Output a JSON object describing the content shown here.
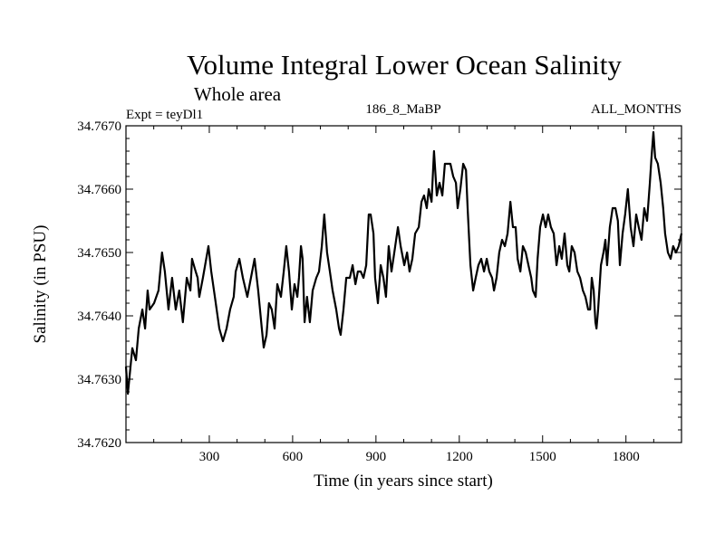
{
  "chart_data": {
    "type": "line",
    "title": "Volume Integral Lower Ocean Salinity",
    "subtitle": "Whole area",
    "annotations": {
      "left": "Expt = teyDl1",
      "center": "186_8_MaBP",
      "right": "ALL_MONTHS"
    },
    "xlabel": "Time (in years since start)",
    "ylabel": "Salinity (in PSU)",
    "xlim": [
      0,
      2000
    ],
    "ylim": [
      34.762,
      34.767
    ],
    "x_ticks": [
      300,
      600,
      900,
      1200,
      1500,
      1800
    ],
    "x_tick_labels": [
      "300",
      "600",
      "900",
      "1200",
      "1500",
      "1800"
    ],
    "x_minor_step": 100,
    "y_ticks": [
      34.762,
      34.763,
      34.764,
      34.765,
      34.766,
      34.767
    ],
    "y_tick_labels": [
      "34.7620",
      "34.7630",
      "34.7640",
      "34.7650",
      "34.7660",
      "34.7670"
    ],
    "y_minor_step": 0.0002,
    "grid": false,
    "legend": "none",
    "series": [
      {
        "name": "Lower ocean salinity",
        "color": "#000000",
        "x": [
          0,
          7,
          23,
          36,
          46,
          59,
          69,
          78,
          85,
          101,
          117,
          130,
          140,
          153,
          166,
          179,
          192,
          205,
          219,
          232,
          238,
          251,
          258,
          264,
          277,
          297,
          307,
          320,
          336,
          349,
          362,
          375,
          388,
          395,
          408,
          421,
          437,
          450,
          463,
          476,
          489,
          496,
          506,
          515,
          525,
          535,
          545,
          558,
          568,
          577,
          587,
          597,
          607,
          617,
          623,
          630,
          636,
          643,
          652,
          662,
          672,
          685,
          695,
          705,
          714,
          724,
          734,
          744,
          757,
          767,
          773,
          783,
          793,
          806,
          816,
          826,
          835,
          845,
          855,
          865,
          874,
          881,
          891,
          897,
          907,
          917,
          927,
          936,
          946,
          956,
          966,
          979,
          989,
          1002,
          1012,
          1021,
          1031,
          1041,
          1054,
          1064,
          1073,
          1083,
          1090,
          1100,
          1109,
          1119,
          1129,
          1139,
          1148,
          1158,
          1168,
          1178,
          1188,
          1194,
          1204,
          1214,
          1224,
          1230,
          1240,
          1250,
          1259,
          1269,
          1279,
          1289,
          1299,
          1308,
          1318,
          1325,
          1334,
          1344,
          1354,
          1364,
          1374,
          1384,
          1393,
          1403,
          1410,
          1420,
          1429,
          1439,
          1449,
          1459,
          1465,
          1475,
          1482,
          1491,
          1501,
          1511,
          1520,
          1530,
          1540,
          1550,
          1560,
          1569,
          1579,
          1589,
          1596,
          1605,
          1615,
          1625,
          1635,
          1645,
          1654,
          1664,
          1671,
          1677,
          1684,
          1690,
          1694,
          1700,
          1710,
          1719,
          1726,
          1732,
          1742,
          1752,
          1762,
          1771,
          1778,
          1788,
          1797,
          1807,
          1817,
          1827,
          1837,
          1846,
          1856,
          1866,
          1876,
          1886,
          1892,
          1899,
          1905,
          1915,
          1925,
          1934,
          1941,
          1951,
          1961,
          1970,
          1980,
          1990,
          2000
        ],
        "y": [
          34.7632,
          34.76277,
          34.76349,
          34.7633,
          34.7638,
          34.7641,
          34.7638,
          34.7644,
          34.7641,
          34.7642,
          34.7644,
          34.765,
          34.7647,
          34.7641,
          34.7646,
          34.7641,
          34.7644,
          34.7639,
          34.7646,
          34.7644,
          34.7649,
          34.7647,
          34.7646,
          34.7643,
          34.7646,
          34.7651,
          34.7647,
          34.7643,
          34.7638,
          34.7636,
          34.7638,
          34.7641,
          34.7643,
          34.7647,
          34.7649,
          34.7646,
          34.7643,
          34.7646,
          34.7649,
          34.7644,
          34.7638,
          34.7635,
          34.7637,
          34.7642,
          34.7641,
          34.7638,
          34.7645,
          34.7643,
          34.7647,
          34.7651,
          34.7647,
          34.7641,
          34.7645,
          34.7643,
          34.7646,
          34.7651,
          34.7649,
          34.7639,
          34.7643,
          34.7639,
          34.7644,
          34.7646,
          34.7647,
          34.7651,
          34.7656,
          34.765,
          34.7647,
          34.7644,
          34.7641,
          34.7638,
          34.7637,
          34.7641,
          34.7646,
          34.7646,
          34.7648,
          34.7645,
          34.7647,
          34.7647,
          34.7646,
          34.7648,
          34.7656,
          34.7656,
          34.7653,
          34.7646,
          34.7642,
          34.7648,
          34.7646,
          34.7643,
          34.7651,
          34.7647,
          34.765,
          34.7654,
          34.7651,
          34.7648,
          34.765,
          34.7647,
          34.7649,
          34.7653,
          34.7654,
          34.7658,
          34.7659,
          34.7657,
          34.766,
          34.7658,
          34.7666,
          34.7659,
          34.7661,
          34.7659,
          34.7664,
          34.7664,
          34.7664,
          34.7662,
          34.7661,
          34.7657,
          34.766,
          34.7664,
          34.7663,
          34.7657,
          34.7648,
          34.7644,
          34.7646,
          34.7648,
          34.7649,
          34.7647,
          34.7649,
          34.7647,
          34.7646,
          34.7644,
          34.7646,
          34.765,
          34.7652,
          34.7651,
          34.7653,
          34.7658,
          34.7654,
          34.7654,
          34.7649,
          34.7647,
          34.7651,
          34.765,
          34.7648,
          34.7646,
          34.7644,
          34.7643,
          34.7649,
          34.7654,
          34.7656,
          34.7654,
          34.7656,
          34.7654,
          34.7653,
          34.7648,
          34.7651,
          34.7649,
          34.7653,
          34.7648,
          34.7647,
          34.7651,
          34.765,
          34.7647,
          34.7646,
          34.7644,
          34.7643,
          34.7641,
          34.7641,
          34.7646,
          34.7644,
          34.7639,
          34.7638,
          34.7641,
          34.7648,
          34.765,
          34.7652,
          34.7648,
          34.7654,
          34.7657,
          34.7657,
          34.7655,
          34.7648,
          34.7653,
          34.7656,
          34.766,
          34.7654,
          34.7651,
          34.7656,
          34.7654,
          34.7652,
          34.7657,
          34.7655,
          34.7661,
          34.7665,
          34.7669,
          34.7665,
          34.7664,
          34.7661,
          34.7657,
          34.7653,
          34.765,
          34.7649,
          34.7651,
          34.765,
          34.7651,
          34.7653
        ]
      }
    ]
  }
}
